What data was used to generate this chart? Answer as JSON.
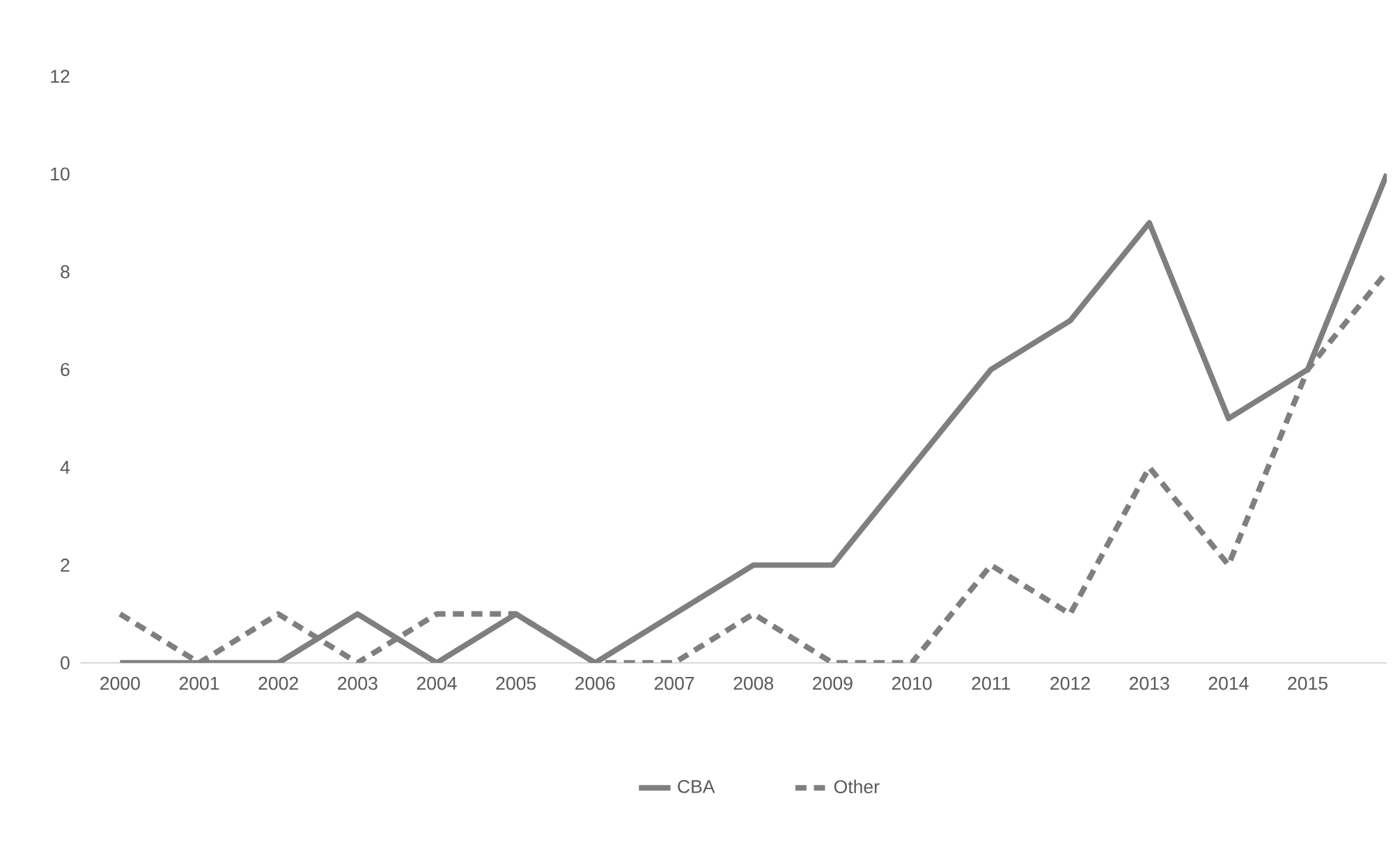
{
  "chart_data": {
    "type": "line",
    "categories": [
      "2000",
      "2001",
      "2002",
      "2003",
      "2004",
      "2005",
      "2006",
      "2007",
      "2008",
      "2009",
      "2010",
      "2011",
      "2012",
      "2013",
      "2014",
      "2015",
      null
    ],
    "series": [
      {
        "name": "CBA",
        "color": "#7f7f7f",
        "line_style": "solid",
        "values": [
          0,
          0,
          0,
          1,
          0,
          1,
          0,
          1,
          2,
          2,
          4,
          6,
          7,
          9,
          5,
          6,
          10
        ]
      },
      {
        "name": "Other",
        "color": "#7f7f7f",
        "line_style": "dashed",
        "values": [
          1,
          0,
          1,
          0,
          1,
          1,
          0,
          0,
          1,
          0,
          0,
          2,
          1,
          4,
          2,
          6,
          8
        ]
      }
    ],
    "ylim": [
      0,
      12
    ],
    "yticks": [
      0,
      2,
      4,
      6,
      8,
      10,
      12
    ],
    "legend": "bottom"
  }
}
